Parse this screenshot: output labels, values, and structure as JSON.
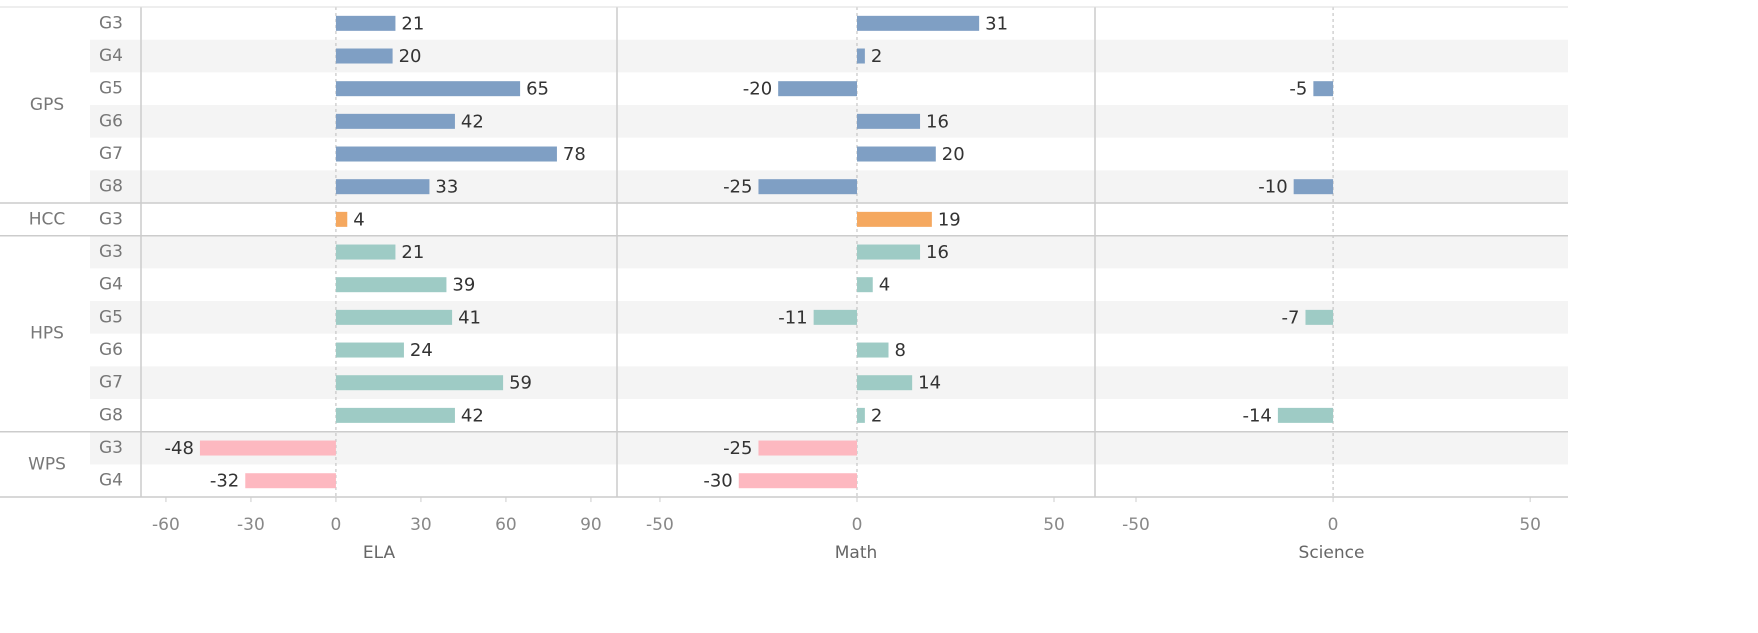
{
  "chart_data": {
    "type": "bar",
    "panels": [
      {
        "label": "ELA",
        "xlim": [
          -68.8,
          99.2
        ],
        "xticks": [
          -60,
          -30,
          0,
          30,
          60,
          90
        ]
      },
      {
        "label": "Math",
        "xlim": [
          -60.9,
          60.4
        ],
        "xticks": [
          -50,
          0,
          50
        ]
      },
      {
        "label": "Science",
        "xlim": [
          -60.4,
          59.6
        ],
        "xticks": [
          -50,
          0,
          50
        ]
      }
    ],
    "groups": [
      {
        "name": "GPS",
        "color": "#7f9fc4",
        "categories": [
          "G3",
          "G4",
          "G5",
          "G6",
          "G7",
          "G8"
        ],
        "values": [
          [
            21,
            20,
            65,
            42,
            78,
            33
          ],
          [
            31,
            2,
            -20,
            16,
            20,
            -25
          ],
          [
            null,
            null,
            -5,
            null,
            null,
            -10
          ]
        ]
      },
      {
        "name": "HCC",
        "color": "#f5a85f",
        "categories": [
          "G3"
        ],
        "values": [
          [
            4
          ],
          [
            19
          ],
          [
            null
          ]
        ]
      },
      {
        "name": "HPS",
        "color": "#9ecbc5",
        "categories": [
          "G3",
          "G4",
          "G5",
          "G6",
          "G7",
          "G8"
        ],
        "values": [
          [
            21,
            39,
            41,
            24,
            59,
            42
          ],
          [
            16,
            4,
            -11,
            8,
            14,
            2
          ],
          [
            null,
            null,
            -7,
            null,
            null,
            -14
          ]
        ]
      },
      {
        "name": "WPS",
        "color": "#fdb8c0",
        "categories": [
          "G3",
          "G4"
        ],
        "values": [
          [
            -48,
            -32
          ],
          [
            -25,
            -30
          ],
          [
            null,
            null
          ]
        ]
      }
    ]
  }
}
